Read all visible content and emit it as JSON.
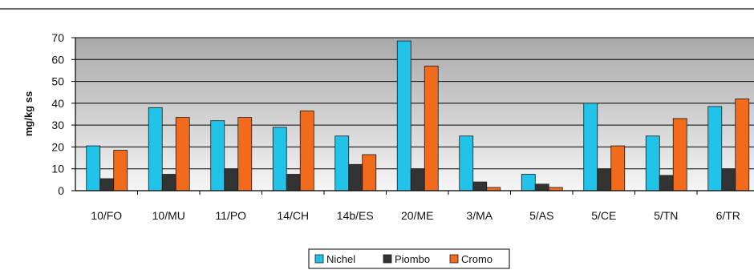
{
  "chart_data": {
    "type": "bar",
    "title": "",
    "xlabel": "",
    "ylabel": "mg/kg ss",
    "ylim": [
      0,
      70
    ],
    "yticks": [
      0,
      10,
      20,
      30,
      40,
      50,
      60,
      70
    ],
    "grid": true,
    "legend_position": "bottom",
    "categories": [
      "10/FO",
      "10/MU",
      "11/PO",
      "14/CH",
      "14b/ES",
      "20/ME",
      "3/MA",
      "5/AS",
      "5/CE",
      "5/TN",
      "6/TR"
    ],
    "series": [
      {
        "name": "Nichel",
        "color": "#22c3e8",
        "values": [
          20.5,
          38,
          32,
          29,
          25,
          68.5,
          25,
          7.5,
          40,
          25,
          38.5
        ]
      },
      {
        "name": "Piombo",
        "color": "#333333",
        "values": [
          5.5,
          7.5,
          10,
          7.5,
          12,
          10,
          4,
          3,
          10,
          7,
          10
        ]
      },
      {
        "name": "Cromo",
        "color": "#f26a1b",
        "values": [
          18.5,
          33.5,
          33.5,
          36.5,
          16.5,
          57,
          1.5,
          1.5,
          20.5,
          33,
          42
        ]
      }
    ]
  }
}
